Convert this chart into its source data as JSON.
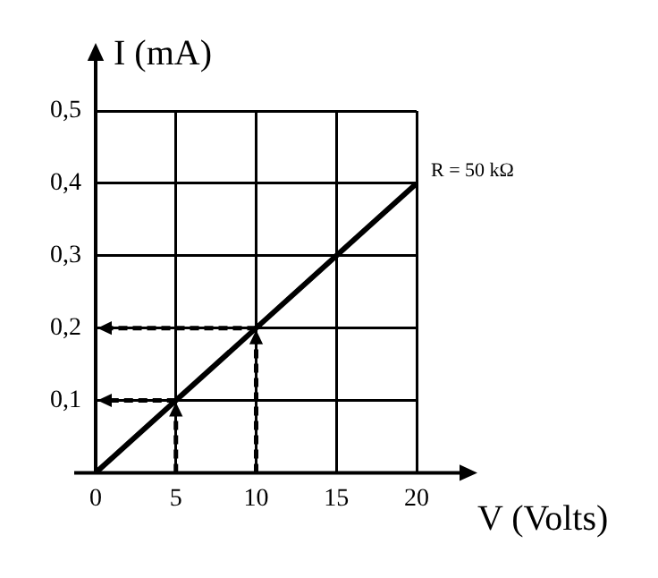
{
  "chart_data": {
    "type": "line",
    "xlabel": "V (Volts)",
    "ylabel": "I (mA)",
    "series": [
      {
        "color": "#000000",
        "x": [
          0,
          5,
          10,
          15,
          20
        ],
        "values": [
          0,
          0.1,
          0.2,
          0.3,
          0.4
        ],
        "line_style": "solid"
      }
    ],
    "annotations": [
      {
        "text": "R = 50 kΩ",
        "x": 20,
        "y": 0.4
      }
    ],
    "xlim": [
      0,
      20
    ],
    "xticks": [
      0,
      5,
      10,
      15,
      20
    ],
    "ylim": [
      0,
      0.5
    ],
    "yticks": [
      {
        "value": 0,
        "label": null
      },
      {
        "value": 0.1,
        "label": "0,1"
      },
      {
        "value": 0.2,
        "label": "0,2"
      },
      {
        "value": 0.3,
        "label": "0,3"
      },
      {
        "value": 0.4,
        "label": "0,4"
      },
      {
        "value": 0.5,
        "label": "0,5"
      }
    ],
    "grid": true,
    "marker": "none",
    "legend": false
  }
}
